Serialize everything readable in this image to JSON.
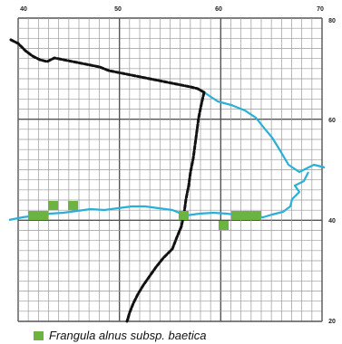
{
  "map": {
    "grid_labels": {
      "top": [
        "40",
        "50",
        "60",
        "70"
      ],
      "right": [
        "80",
        "60",
        "40",
        "20"
      ]
    },
    "colors": {
      "grid_minor": "#9a9a9a",
      "grid_major": "#555555",
      "coast": "#2ab0d8",
      "border": "#111111",
      "species": "#6db33f"
    },
    "occurrence_squares_count": 10
  },
  "legend": {
    "label": "Frangula alnus subsp. baetica",
    "swatch_color": "#6db33f"
  }
}
